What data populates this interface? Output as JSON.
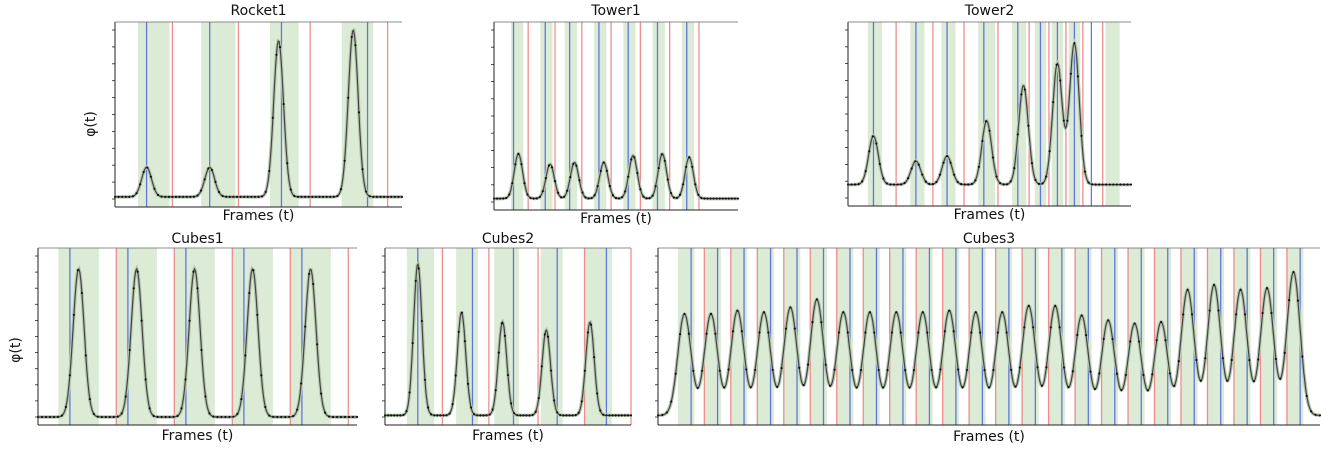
{
  "figure": {
    "panels_note": ""
  },
  "chart_data": [
    {
      "type": "line",
      "title": "Rocket1",
      "xlabel": "Frames (t)",
      "ylabel": "φ(t)",
      "ylim": [
        0,
        10
      ],
      "yticks": [
        0,
        1,
        2,
        3,
        4,
        5,
        6,
        7,
        8,
        9,
        10
      ],
      "baseline": 0.2,
      "peaks": [
        {
          "x": 11,
          "h": 3.0
        },
        {
          "x": 33,
          "h": 3.0
        },
        {
          "x": 57,
          "h": 15.0
        },
        {
          "x": 83,
          "h": 16.0
        }
      ],
      "x_range": [
        0,
        100
      ],
      "blue_lines": [
        11,
        33,
        58,
        88
      ],
      "red_lines": [
        20,
        43,
        68,
        95
      ],
      "green_bands": [
        [
          8,
          19
        ],
        [
          30,
          42
        ],
        [
          54,
          64
        ],
        [
          79,
          90
        ]
      ],
      "series_colors": {
        "curve": "#444444",
        "halo": "#b7c9b0",
        "blue": "#4a64d8",
        "red": "#ee7b7b",
        "band": "#dcebd6"
      }
    },
    {
      "type": "line",
      "title": "Tower1",
      "xlabel": "Frames (t)",
      "ylabel": "",
      "ylim": [
        0,
        10
      ],
      "baseline": 0.2,
      "peaks": [
        {
          "x": 10,
          "h": 2.8
        },
        {
          "x": 23,
          "h": 2.2
        },
        {
          "x": 33,
          "h": 2.3
        },
        {
          "x": 45,
          "h": 2.3
        },
        {
          "x": 57,
          "h": 2.7
        },
        {
          "x": 69,
          "h": 2.8
        },
        {
          "x": 80,
          "h": 2.6
        }
      ],
      "x_range": [
        0,
        100
      ],
      "blue_lines": [
        8,
        21,
        31,
        43,
        55,
        67,
        79
      ],
      "red_lines": [
        14,
        25,
        36,
        48,
        60,
        72,
        84
      ],
      "green_bands": [
        [
          7,
          12
        ],
        [
          19,
          24
        ],
        [
          29,
          34
        ],
        [
          41,
          46
        ],
        [
          53,
          58
        ],
        [
          65,
          70
        ],
        [
          77,
          82
        ]
      ],
      "series_colors": {
        "curve": "#444444",
        "halo": "#b7c9b0",
        "blue": "#4a64d8",
        "red": "#ee7b7b",
        "band": "#dcebd6"
      }
    },
    {
      "type": "line",
      "title": "Tower2",
      "xlabel": "Frames (t)",
      "ylabel": "",
      "ylim": [
        0,
        10
      ],
      "baseline": 0.8,
      "peaks": [
        {
          "x": 9,
          "h": 3.7
        },
        {
          "x": 24,
          "h": 2.2
        },
        {
          "x": 35,
          "h": 2.5
        },
        {
          "x": 49,
          "h": 4.6
        },
        {
          "x": 62,
          "h": 6.7
        },
        {
          "x": 74,
          "h": 8.0
        },
        {
          "x": 80,
          "h": 9.2
        }
      ],
      "x_range": [
        0,
        100
      ],
      "blue_lines": [
        9,
        24,
        35,
        48,
        60,
        68,
        74,
        80,
        86
      ],
      "red_lines": [
        17,
        30,
        41,
        53,
        64,
        71,
        77,
        83,
        90
      ],
      "green_bands": [
        [
          7,
          12
        ],
        [
          22,
          27
        ],
        [
          33,
          38
        ],
        [
          46,
          52
        ],
        [
          58,
          63
        ],
        [
          66,
          70
        ],
        [
          72,
          76
        ],
        [
          78,
          82
        ],
        [
          91,
          96
        ]
      ],
      "series_colors": {
        "curve": "#444444",
        "halo": "#b7c9b0",
        "blue": "#4a64d8",
        "red": "#ee7b7b",
        "band": "#dcebd6"
      }
    },
    {
      "type": "line",
      "title": "Cubes1",
      "xlabel": "Frames (t)",
      "ylabel": "φ(t)",
      "ylim": [
        0,
        10
      ],
      "baseline": 0.0,
      "peaks": [
        {
          "x": 14,
          "h": 9.2
        },
        {
          "x": 34,
          "h": 9.2
        },
        {
          "x": 54,
          "h": 9.2
        },
        {
          "x": 74,
          "h": 9.2
        },
        {
          "x": 94,
          "h": 9.2
        }
      ],
      "x_range": [
        0,
        110
      ],
      "blue_lines": [
        11,
        31,
        51,
        71,
        91
      ],
      "red_lines": [
        27,
        47,
        67,
        87,
        107
      ],
      "green_bands": [
        [
          7,
          21
        ],
        [
          27,
          41
        ],
        [
          47,
          61
        ],
        [
          67,
          81
        ],
        [
          87,
          101
        ]
      ],
      "series_colors": {
        "curve": "#444444",
        "halo": "#b7c9b0",
        "blue": "#4a64d8",
        "red": "#ee7b7b",
        "band": "#dcebd6"
      }
    },
    {
      "type": "line",
      "title": "Cubes2",
      "xlabel": "Frames (t)",
      "ylabel": "",
      "ylim": [
        0,
        10
      ],
      "baseline": 0.1,
      "peaks": [
        {
          "x": 12,
          "h": 9.5
        },
        {
          "x": 28,
          "h": 6.5
        },
        {
          "x": 43,
          "h": 5.9
        },
        {
          "x": 59,
          "h": 5.4
        },
        {
          "x": 75,
          "h": 5.9
        }
      ],
      "x_range": [
        0,
        90
      ],
      "blue_lines": [
        12,
        32,
        47,
        63,
        81
      ],
      "red_lines": [
        21,
        38,
        56,
        73,
        90
      ],
      "green_bands": [
        [
          8,
          18
        ],
        [
          26,
          34
        ],
        [
          40,
          49
        ],
        [
          57,
          65
        ],
        [
          73,
          83
        ]
      ],
      "series_colors": {
        "curve": "#444444",
        "halo": "#b7c9b0",
        "blue": "#4a64d8",
        "red": "#ee7b7b",
        "band": "#dcebd6"
      }
    },
    {
      "type": "line",
      "title": "Cubes3",
      "xlabel": "Frames (t)",
      "ylabel": "",
      "ylim": [
        0,
        10
      ],
      "baseline": 0.1,
      "peaks": [
        {
          "x": 4,
          "h": 6.4
        },
        {
          "x": 8,
          "h": 6.4
        },
        {
          "x": 12,
          "h": 6.6
        },
        {
          "x": 16,
          "h": 6.5
        },
        {
          "x": 20,
          "h": 6.8
        },
        {
          "x": 24,
          "h": 7.3
        },
        {
          "x": 28,
          "h": 6.5
        },
        {
          "x": 32,
          "h": 6.5
        },
        {
          "x": 36,
          "h": 6.5
        },
        {
          "x": 40,
          "h": 6.5
        },
        {
          "x": 44,
          "h": 6.6
        },
        {
          "x": 48,
          "h": 6.5
        },
        {
          "x": 52,
          "h": 6.5
        },
        {
          "x": 56,
          "h": 6.9
        },
        {
          "x": 60,
          "h": 6.9
        },
        {
          "x": 64,
          "h": 6.3
        },
        {
          "x": 68,
          "h": 6.0
        },
        {
          "x": 72,
          "h": 5.8
        },
        {
          "x": 76,
          "h": 5.9
        },
        {
          "x": 80,
          "h": 7.9
        },
        {
          "x": 84,
          "h": 8.2
        },
        {
          "x": 88,
          "h": 7.9
        },
        {
          "x": 92,
          "h": 8.0
        },
        {
          "x": 96,
          "h": 9.0
        }
      ],
      "x_range": [
        0,
        100
      ],
      "blue_lines": [
        5,
        9,
        13,
        17,
        21,
        25,
        29,
        33,
        37,
        41,
        45,
        49,
        53,
        57,
        61,
        65,
        69,
        73,
        77,
        81,
        85,
        89,
        93,
        97
      ],
      "red_lines": [
        7,
        11,
        15,
        19,
        23,
        27,
        31,
        35,
        39,
        43,
        47,
        51,
        55,
        59,
        63,
        67,
        71,
        75,
        79,
        83,
        87,
        91,
        95
      ],
      "green_bands": [
        [
          3,
          5.5
        ],
        [
          7,
          9.5
        ],
        [
          11,
          13.5
        ],
        [
          15,
          17.5
        ],
        [
          19,
          21.5
        ],
        [
          23,
          25.5
        ],
        [
          27,
          29.5
        ],
        [
          31,
          33.5
        ],
        [
          35,
          37.5
        ],
        [
          39,
          41.5
        ],
        [
          43,
          45.5
        ],
        [
          47,
          49.5
        ],
        [
          51,
          53.5
        ],
        [
          55,
          57.5
        ],
        [
          59,
          61.5
        ],
        [
          63,
          65.5
        ],
        [
          67,
          69.5
        ],
        [
          71,
          73.5
        ],
        [
          75,
          77.5
        ],
        [
          79,
          81.5
        ],
        [
          83,
          85.5
        ],
        [
          87,
          89.5
        ],
        [
          91,
          93.5
        ],
        [
          95,
          97.5
        ]
      ],
      "series_colors": {
        "curve": "#444444",
        "halo": "#b7c9b0",
        "blue": "#4a64d8",
        "red": "#ee7b7b",
        "band": "#dcebd6"
      }
    }
  ]
}
